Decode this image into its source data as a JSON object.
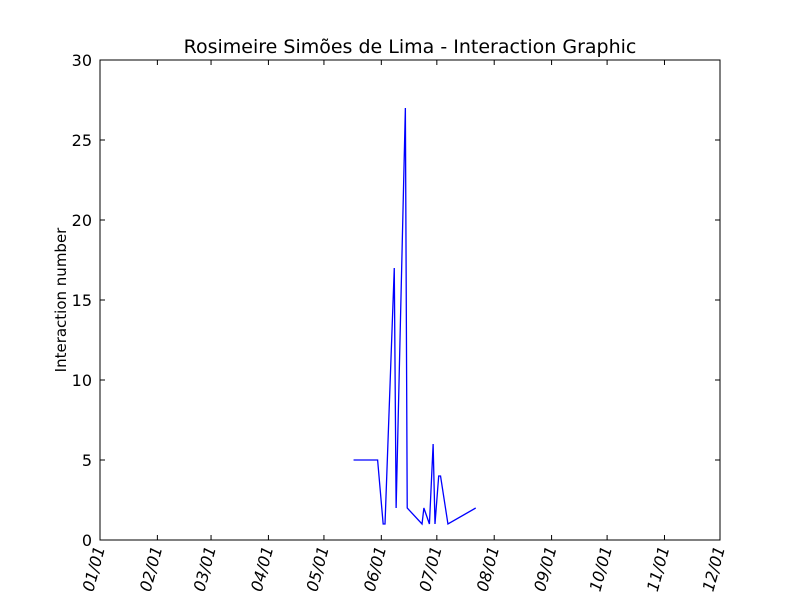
{
  "chart_data": {
    "type": "line",
    "title": "Rosimeire Simões de Lima - Interaction Graphic",
    "xlabel": "",
    "ylabel": "Interaction number",
    "xlim": [
      "2016-01-01",
      "2016-12-01"
    ],
    "ylim": [
      0,
      30
    ],
    "yticks": [
      0,
      5,
      10,
      15,
      20,
      25,
      30
    ],
    "xticks": [
      {
        "date": "2016-01-01",
        "label": "01/01"
      },
      {
        "date": "2016-02-01",
        "label": "02/01"
      },
      {
        "date": "2016-03-01",
        "label": "03/01"
      },
      {
        "date": "2016-04-01",
        "label": "04/01"
      },
      {
        "date": "2016-05-01",
        "label": "05/01"
      },
      {
        "date": "2016-06-01",
        "label": "06/01"
      },
      {
        "date": "2016-07-01",
        "label": "07/01"
      },
      {
        "date": "2016-08-01",
        "label": "08/01"
      },
      {
        "date": "2016-09-01",
        "label": "09/01"
      },
      {
        "date": "2016-10-01",
        "label": "10/01"
      },
      {
        "date": "2016-11-01",
        "label": "11/01"
      },
      {
        "date": "2016-12-01",
        "label": "12/01"
      }
    ],
    "grid": false,
    "series": [
      {
        "color": "#0000ff",
        "points": [
          {
            "x": "2016-05-17",
            "y": 5
          },
          {
            "x": "2016-05-30",
            "y": 5
          },
          {
            "x": "2016-06-02",
            "y": 1
          },
          {
            "x": "2016-06-03",
            "y": 1
          },
          {
            "x": "2016-06-08",
            "y": 17
          },
          {
            "x": "2016-06-09",
            "y": 2
          },
          {
            "x": "2016-06-14",
            "y": 27
          },
          {
            "x": "2016-06-15",
            "y": 2
          },
          {
            "x": "2016-06-23",
            "y": 1
          },
          {
            "x": "2016-06-24",
            "y": 2
          },
          {
            "x": "2016-06-27",
            "y": 1
          },
          {
            "x": "2016-06-29",
            "y": 6
          },
          {
            "x": "2016-06-30",
            "y": 1
          },
          {
            "x": "2016-07-02",
            "y": 4
          },
          {
            "x": "2016-07-03",
            "y": 4
          },
          {
            "x": "2016-07-07",
            "y": 1
          },
          {
            "x": "2016-07-22",
            "y": 2
          }
        ]
      }
    ]
  }
}
